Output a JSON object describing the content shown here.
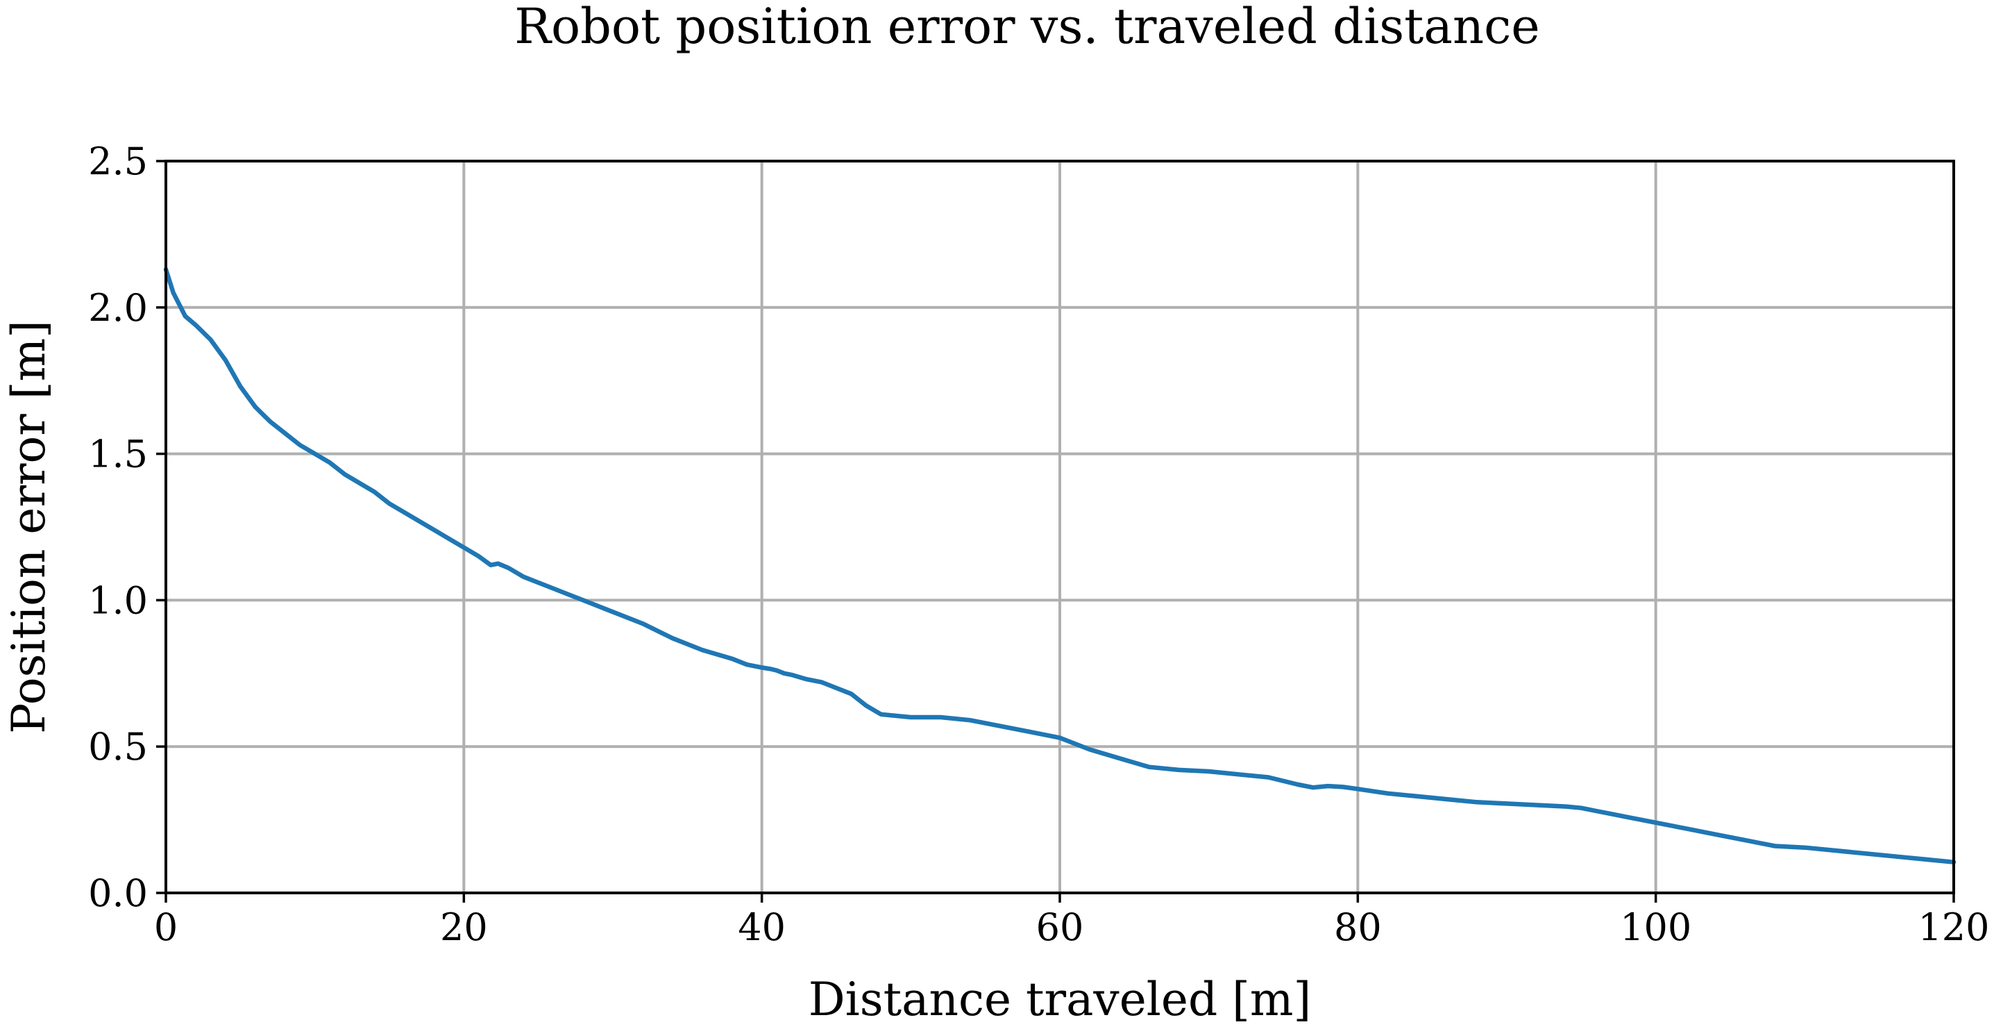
{
  "chart_data": {
    "type": "line",
    "title": "Robot position error vs. traveled distance",
    "xlabel": "Distance traveled [m]",
    "ylabel": "Position error [m]",
    "xlim": [
      0,
      120
    ],
    "ylim": [
      0,
      2.5
    ],
    "xticks": [
      0,
      20,
      40,
      60,
      80,
      100,
      120
    ],
    "yticks": [
      0,
      0.5,
      1.0,
      1.5,
      2.0,
      2.5
    ],
    "xtick_labels": [
      "0",
      "20",
      "40",
      "60",
      "80",
      "100",
      "120"
    ],
    "ytick_labels": [
      "0.0",
      "0.5",
      "1.0",
      "1.5",
      "2.0",
      "2.5"
    ],
    "grid": true,
    "line_color": "#1f77b4",
    "series": [
      {
        "x": [
          0,
          0.5,
          1.3,
          2.0,
          3.0,
          4.0,
          5.0,
          6.0,
          7.0,
          8.0,
          9.0,
          10.0,
          11.0,
          12.0,
          13.0,
          14.0,
          15.0,
          16.0,
          17.0,
          18.0,
          19.0,
          20.0,
          21.0,
          21.8,
          22.3,
          23.0,
          24.0,
          25.0,
          26.0,
          27.0,
          28.0,
          30.0,
          32.0,
          34.0,
          36.0,
          38.0,
          39.0,
          40.0,
          40.6,
          41.0,
          41.5,
          42.0,
          43.0,
          44.0,
          45.0,
          46.0,
          47.0,
          48.0,
          50.0,
          52.0,
          54.0,
          56.0,
          58.0,
          60.0,
          62.0,
          64.0,
          66.0,
          68.0,
          70.0,
          72.0,
          74.0,
          76.0,
          77.0,
          78.0,
          79.0,
          80.0,
          82.0,
          84.0,
          86.0,
          88.0,
          90.0,
          92.0,
          94.0,
          95.0,
          96.0,
          97.0,
          98.0,
          100.0,
          102.0,
          104.0,
          106.0,
          108.0,
          110.0,
          112.0,
          114.0,
          116.0,
          118.0,
          120.0
        ],
        "y": [
          2.13,
          2.05,
          1.97,
          1.94,
          1.89,
          1.82,
          1.73,
          1.66,
          1.61,
          1.57,
          1.53,
          1.5,
          1.47,
          1.43,
          1.4,
          1.37,
          1.33,
          1.3,
          1.27,
          1.24,
          1.21,
          1.18,
          1.15,
          1.12,
          1.125,
          1.11,
          1.08,
          1.06,
          1.04,
          1.02,
          1.0,
          0.96,
          0.92,
          0.87,
          0.83,
          0.8,
          0.78,
          0.77,
          0.765,
          0.76,
          0.75,
          0.745,
          0.73,
          0.72,
          0.7,
          0.68,
          0.64,
          0.61,
          0.6,
          0.6,
          0.59,
          0.57,
          0.55,
          0.53,
          0.49,
          0.46,
          0.43,
          0.42,
          0.415,
          0.405,
          0.395,
          0.37,
          0.36,
          0.365,
          0.362,
          0.355,
          0.34,
          0.33,
          0.32,
          0.31,
          0.305,
          0.3,
          0.295,
          0.29,
          0.28,
          0.27,
          0.26,
          0.24,
          0.22,
          0.2,
          0.18,
          0.16,
          0.155,
          0.145,
          0.135,
          0.125,
          0.115,
          0.105
        ]
      }
    ]
  }
}
